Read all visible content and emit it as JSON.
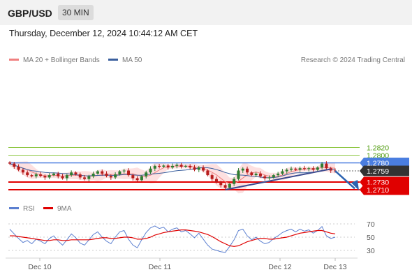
{
  "header": {
    "symbol": "GBP/USD",
    "interval": "30 MIN",
    "datetime": "Thursday, December 12, 2024 10:44:12 AM CET"
  },
  "legend": {
    "ma20_label": "MA 20 + Bollinger Bands",
    "ma50_label": "MA 50",
    "credit": "Research © 2024 Trading Central",
    "rsi_label": "RSI",
    "ma9_label": "9MA"
  },
  "colors": {
    "ma20": "#f08080",
    "bollinger_fill": "#fde0e0",
    "ma50": "#3a5f9e",
    "green_level": "#8cc63f",
    "blue_level": "#4a7ee0",
    "red_level": "#e00000",
    "last_price": "#333333",
    "trend_line": "#3b4a8f",
    "arrow": "#2b62b0",
    "candle_up": "#2e7d32",
    "candle_down": "#b71c1c",
    "rsi": "#5b7fd0",
    "rsi_ma": "#e00000"
  },
  "chart_data": [
    {
      "type": "candlestick",
      "title": "GBP/USD 30 MIN",
      "x_ticks": [
        "Dec 10",
        "Dec 11",
        "Dec 12",
        "Dec 13"
      ],
      "y_labels": [
        "1.2820",
        "1.2800",
        "1.2780",
        "1.2759",
        "1.2730",
        "1.2710"
      ],
      "levels": [
        {
          "value": 1.282,
          "label": "1.2820",
          "kind": "resistance-target"
        },
        {
          "value": 1.28,
          "label": "1.2800",
          "kind": "resistance-target"
        },
        {
          "value": 1.278,
          "label": "1.2780",
          "kind": "pivot"
        },
        {
          "value": 1.2759,
          "label": "1.2759",
          "kind": "last-price"
        },
        {
          "value": 1.273,
          "label": "1.2730",
          "kind": "support"
        },
        {
          "value": 1.271,
          "label": "1.2710",
          "kind": "support"
        }
      ],
      "ylim": [
        1.27,
        1.283
      ],
      "series": [
        {
          "name": "MA 20 + Bollinger Bands"
        },
        {
          "name": "MA 50"
        }
      ],
      "close_path": [
        1.2778,
        1.277,
        1.2762,
        1.2755,
        1.2748,
        1.2745,
        1.275,
        1.2746,
        1.2742,
        1.2748,
        1.2752,
        1.2745,
        1.274,
        1.2748,
        1.2755,
        1.275,
        1.2742,
        1.2738,
        1.2745,
        1.2752,
        1.2758,
        1.2752,
        1.2746,
        1.2742,
        1.275,
        1.2758,
        1.276,
        1.2748,
        1.274,
        1.2735,
        1.2745,
        1.2755,
        1.2765,
        1.2772,
        1.277,
        1.2773,
        1.2768,
        1.2772,
        1.2775,
        1.277,
        1.2772,
        1.2768,
        1.2762,
        1.2768,
        1.276,
        1.2748,
        1.2738,
        1.273,
        1.2722,
        1.2715,
        1.2725,
        1.2738,
        1.276,
        1.2765,
        1.2755,
        1.2748,
        1.2752,
        1.2745,
        1.274,
        1.2742,
        1.2748,
        1.2752,
        1.2758,
        1.2762,
        1.2765,
        1.2762,
        1.2766,
        1.2764,
        1.2766,
        1.2762,
        1.2768,
        1.2778,
        1.2766,
        1.276,
        1.2759
      ]
    },
    {
      "type": "line",
      "title": "RSI",
      "y_ticks": [
        70,
        50,
        30
      ],
      "ylim": [
        20,
        80
      ],
      "series": [
        {
          "name": "RSI",
          "values": [
            62,
            55,
            48,
            42,
            45,
            40,
            47,
            44,
            40,
            48,
            52,
            44,
            38,
            46,
            55,
            49,
            41,
            38,
            46,
            54,
            58,
            50,
            44,
            40,
            50,
            58,
            60,
            47,
            38,
            34,
            46,
            57,
            64,
            67,
            63,
            65,
            58,
            62,
            64,
            58,
            60,
            55,
            49,
            56,
            47,
            38,
            32,
            30,
            28,
            27,
            36,
            46,
            60,
            62,
            52,
            46,
            50,
            44,
            40,
            42,
            48,
            52,
            57,
            60,
            62,
            58,
            62,
            59,
            61,
            56,
            60,
            66,
            52,
            48,
            50
          ]
        },
        {
          "name": "9MA",
          "values": [
            52,
            52,
            51,
            50,
            49,
            48,
            47,
            46,
            45,
            45,
            46,
            46,
            45,
            45,
            46,
            46,
            46,
            46,
            46,
            47,
            48,
            49,
            49,
            48,
            48,
            49,
            50,
            50,
            49,
            47,
            47,
            48,
            50,
            53,
            55,
            57,
            58,
            59,
            60,
            61,
            61,
            60,
            59,
            58,
            56,
            54,
            51,
            47,
            43,
            40,
            37,
            36,
            37,
            40,
            43,
            45,
            47,
            48,
            48,
            47,
            47,
            48,
            49,
            50,
            52,
            54,
            56,
            57,
            58,
            59,
            60,
            60,
            58,
            56,
            55
          ]
        }
      ]
    }
  ]
}
